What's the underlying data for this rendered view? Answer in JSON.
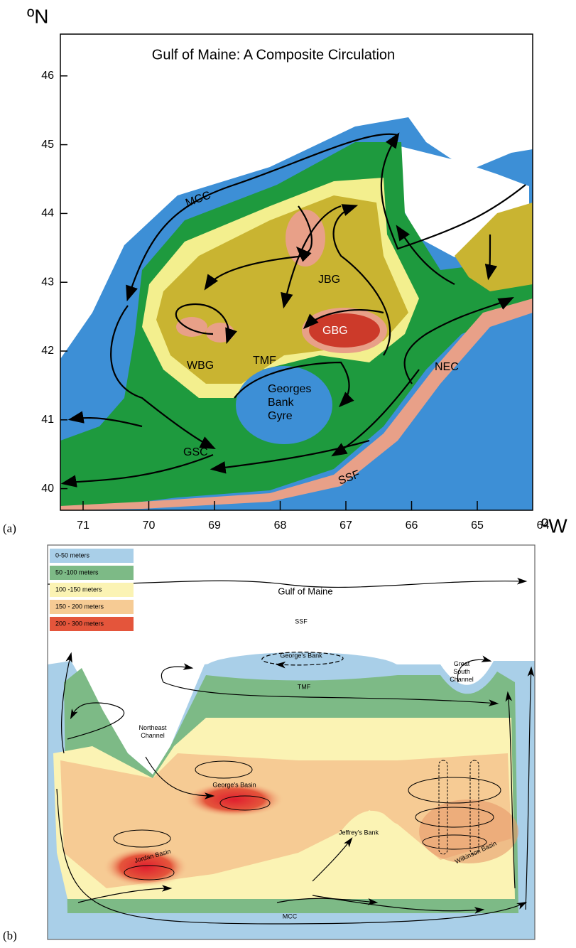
{
  "panel_a": {
    "label": "(a)",
    "title": "Gulf of Maine: A Composite Circulation",
    "lat_unit": "ºN",
    "lon_unit": "ºW",
    "lat_ticks": [
      46,
      45,
      44,
      43,
      42,
      41,
      40
    ],
    "lon_ticks": [
      71,
      70,
      69,
      68,
      67,
      66,
      65,
      64
    ],
    "features": {
      "mcc": "MCC",
      "jbg": "JBG",
      "gbg": "GBG",
      "wbg": "WBG",
      "tmf": "TMF",
      "gbgyre": [
        "Georges",
        "Bank",
        "Gyre"
      ],
      "nec": "NEC",
      "gsc": "GSC",
      "ssf": "SSF"
    }
  },
  "panel_b": {
    "label": "(b)",
    "title": "Gulf of Maine",
    "legend": [
      {
        "label": "0-50 meters",
        "color": "#a9cfe8"
      },
      {
        "label": "50 -100 meters",
        "color": "#7dba86"
      },
      {
        "label": "100 -150 meters",
        "color": "#fbf3b4"
      },
      {
        "label": "150 - 200 meters",
        "color": "#f6cb94"
      },
      {
        "label": "200 - 300 meters",
        "color": "#e4553b"
      }
    ],
    "features": {
      "ssf": "SSF",
      "georges_bank": "George's Bank",
      "tmf": "TMF",
      "great_south_channel": [
        "Great",
        "South",
        "Channel"
      ],
      "northeast_channel": [
        "Northeast",
        "Channel"
      ],
      "georges_basin": "George's Basin",
      "jeffreys_bank": "Jeffrey's Bank",
      "jordan_basin": "Jordan Basin",
      "wilkinson_basin": "Wilkinson Basin",
      "mcc": "MCC"
    }
  }
}
